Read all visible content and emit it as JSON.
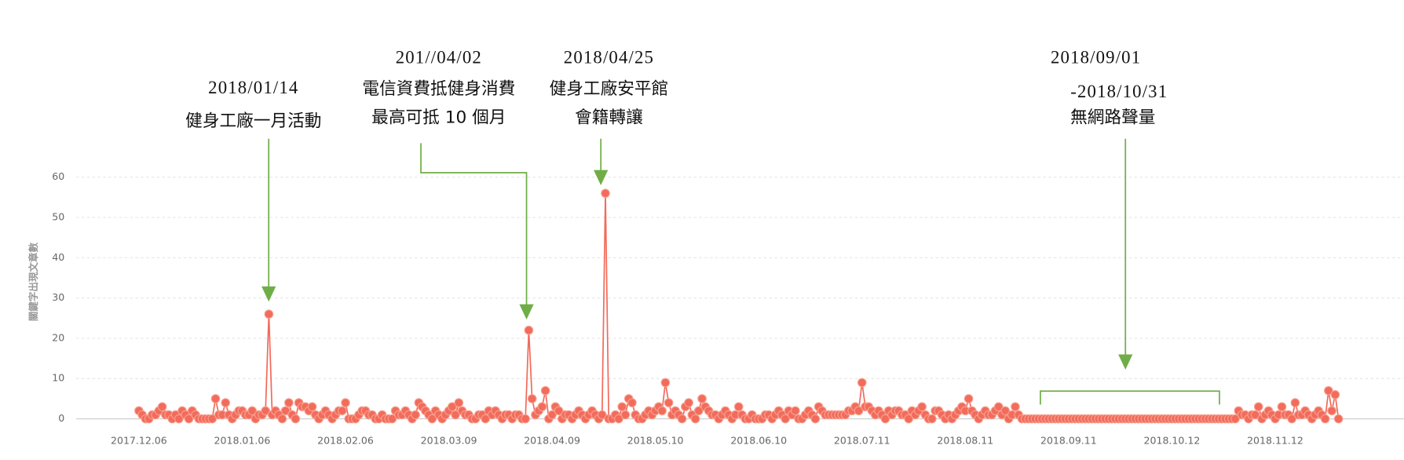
{
  "chart_data": {
    "type": "line",
    "y_label": "關鍵字出現文章數",
    "color": "#f26b5b",
    "ylim": [
      0,
      68
    ],
    "yticks": [
      0,
      10,
      20,
      30,
      40,
      50,
      60
    ],
    "grid": true,
    "xlim": [
      0,
      360
    ],
    "xticks": [
      {
        "value": 0,
        "label": "2017.12.06"
      },
      {
        "value": 31,
        "label": "2018.01.06"
      },
      {
        "value": 62,
        "label": "2018.02.06"
      },
      {
        "value": 93,
        "label": "2018.03.09"
      },
      {
        "value": 124,
        "label": "2018.04.09"
      },
      {
        "value": 155,
        "label": "2018.05.10"
      },
      {
        "value": 186,
        "label": "2018.06.10"
      },
      {
        "value": 217,
        "label": "2018.07.11"
      },
      {
        "value": 248,
        "label": "2018.08.11"
      },
      {
        "value": 279,
        "label": "2018.09.11"
      },
      {
        "value": 310,
        "label": "2018.10.12"
      },
      {
        "value": 341,
        "label": "2018.11.12"
      }
    ],
    "values": [
      2,
      1,
      0,
      0,
      1,
      1,
      2,
      3,
      1,
      1,
      0,
      1,
      0,
      2,
      1,
      0,
      2,
      1,
      0,
      0,
      0,
      0,
      0,
      5,
      1,
      1,
      4,
      1,
      0,
      1,
      2,
      2,
      1,
      1,
      2,
      0,
      1,
      1,
      2,
      26,
      1,
      2,
      1,
      0,
      2,
      4,
      1,
      0,
      4,
      3,
      3,
      2,
      3,
      1,
      0,
      1,
      2,
      1,
      0,
      1,
      2,
      2,
      4,
      0,
      0,
      0,
      1,
      2,
      2,
      1,
      1,
      0,
      0,
      1,
      0,
      0,
      0,
      2,
      1,
      1,
      2,
      1,
      0,
      1,
      4,
      3,
      2,
      1,
      0,
      2,
      1,
      0,
      1,
      2,
      3,
      1,
      4,
      2,
      1,
      1,
      0,
      0,
      1,
      1,
      0,
      2,
      1,
      2,
      1,
      0,
      1,
      1,
      0,
      1,
      1,
      0,
      0,
      22,
      5,
      1,
      2,
      3,
      7,
      0,
      1,
      3,
      2,
      0,
      1,
      1,
      0,
      1,
      2,
      1,
      0,
      1,
      2,
      1,
      0,
      1,
      56,
      0,
      0,
      1,
      0,
      3,
      1,
      5,
      4,
      1,
      0,
      0,
      1,
      2,
      1,
      2,
      3,
      2,
      9,
      4,
      1,
      2,
      1,
      0,
      3,
      4,
      1,
      0,
      2,
      5,
      3,
      2,
      1,
      1,
      0,
      1,
      2,
      1,
      0,
      1,
      3,
      1,
      0,
      0,
      1,
      0,
      0,
      0,
      1,
      1,
      0,
      1,
      2,
      1,
      0,
      2,
      1,
      2,
      0,
      0,
      1,
      2,
      1,
      0,
      3,
      2,
      1,
      1,
      1,
      1,
      1,
      1,
      1,
      2,
      2,
      3,
      2,
      9,
      3,
      3,
      2,
      1,
      2,
      1,
      0,
      2,
      1,
      2,
      2,
      1,
      1,
      0,
      2,
      1,
      2,
      3,
      1,
      0,
      0,
      2,
      2,
      1,
      0,
      1,
      0,
      1,
      2,
      3,
      2,
      5,
      2,
      1,
      0,
      1,
      2,
      1,
      1,
      2,
      3,
      1,
      2,
      0,
      1,
      3,
      1,
      0,
      0,
      0,
      0,
      0,
      0,
      0,
      0,
      0,
      0,
      0,
      0,
      0,
      0,
      0,
      0,
      0,
      0,
      0,
      0,
      0,
      0,
      0,
      0,
      0,
      0,
      0,
      0,
      0,
      0,
      0,
      0,
      0,
      0,
      0,
      0,
      0,
      0,
      0,
      0,
      0,
      0,
      0,
      0,
      0,
      0,
      0,
      0,
      0,
      0,
      0,
      0,
      0,
      0,
      0,
      0,
      0,
      0,
      0,
      0,
      0,
      0,
      0,
      0,
      0,
      2,
      1,
      1,
      0,
      1,
      1,
      3,
      0,
      1,
      2,
      1,
      0,
      1,
      3,
      1,
      1,
      0,
      4,
      1,
      1,
      2,
      1,
      0,
      1,
      2,
      1,
      0,
      7,
      2,
      6,
      0
    ],
    "annotations": [
      {
        "lines": [
          "2018/01/14",
          "健身工廠一月活動"
        ]
      },
      {
        "lines": [
          "201//04/02",
          "電信資費抵健身消費",
          "最高可抵 10 個月"
        ]
      },
      {
        "lines": [
          "2018/04/25",
          "健身工廠安平館",
          "會籍轉讓"
        ]
      },
      {
        "lines": [
          "2018/09/01",
          "-2018/10/31",
          "無網路聲量"
        ]
      }
    ]
  }
}
